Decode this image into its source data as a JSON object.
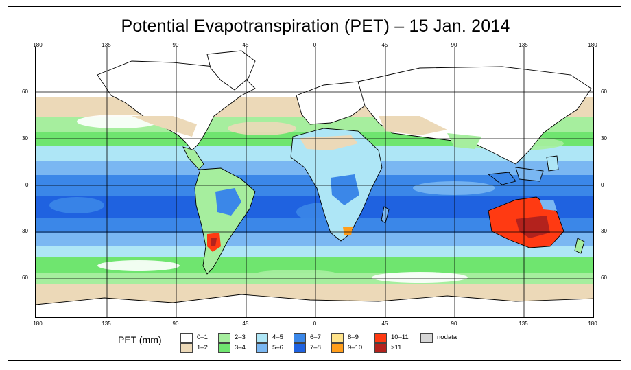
{
  "title": "Potential Evapotranspiration (PET) – 15 Jan. 2014",
  "date": "15 Jan. 2014",
  "longitude_ticks": [
    "180",
    "135",
    "90",
    "45",
    "0",
    "45",
    "90",
    "135",
    "180"
  ],
  "latitude_ticks_left": [
    "60",
    "30",
    "0",
    "30",
    "60"
  ],
  "latitude_ticks_right": [
    "60",
    "30",
    "0",
    "30",
    "60"
  ],
  "legend": {
    "label": "PET (mm)",
    "classes": [
      {
        "label": "0–1",
        "color": "#ffffff"
      },
      {
        "label": "1–2",
        "color": "#ecd9b8"
      },
      {
        "label": "2–3",
        "color": "#a6ee9e"
      },
      {
        "label": "3–4",
        "color": "#6fe56f"
      },
      {
        "label": "4–5",
        "color": "#aee6f6"
      },
      {
        "label": "5–6",
        "color": "#7ab7f2"
      },
      {
        "label": "6–7",
        "color": "#3b87e8"
      },
      {
        "label": "7–8",
        "color": "#1f62e0"
      },
      {
        "label": "8–9",
        "color": "#ffe38a"
      },
      {
        "label": "9–10",
        "color": "#ff9d1a"
      },
      {
        "label": "10–11",
        "color": "#ff3a12"
      },
      {
        "label": ">11",
        "color": "#b3221d"
      },
      {
        "label": "nodata",
        "color": "#d6d6d6"
      }
    ]
  },
  "colors": {
    "ocean_equatorial": "#3b87e8",
    "ocean_deep": "#1f62e0",
    "subtropical": "#7ab7f2",
    "midlat": "#a6ee9e",
    "highlat": "#ecd9b8",
    "coast": "#000000",
    "grid": "#000000"
  }
}
